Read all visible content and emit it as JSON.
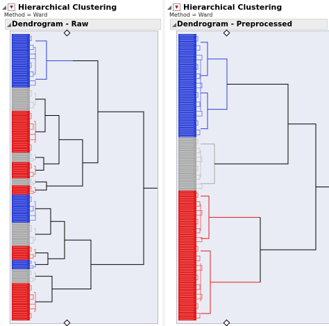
{
  "panels": [
    {
      "title": "Hierarchical Clustering",
      "method_label": "Method = Ward",
      "subtitle": "Dendrogram - Raw",
      "legend_icon": "collapse-triangle-icon",
      "menu_icon": "red-triangle-menu-icon"
    },
    {
      "title": "Hierarchical Clustering",
      "method_label": "Method = Ward",
      "subtitle": "Dendrogram - Preprocessed",
      "legend_icon": "collapse-triangle-icon",
      "menu_icon": "red-triangle-menu-icon"
    }
  ],
  "colors": {
    "blue": "#2a3fd8",
    "gray": "#a9a9a9",
    "red": "#e41818",
    "plot_bg": "#e9ecf4",
    "black": "#000000"
  },
  "left_leaf_groups": [
    {
      "color": "blue",
      "count": 23
    },
    {
      "color": "gray",
      "count": 10
    },
    {
      "color": "red",
      "count": 18
    },
    {
      "color": "gray",
      "count": 4
    },
    {
      "color": "red",
      "count": 7
    },
    {
      "color": "gray",
      "count": 3
    },
    {
      "color": "red",
      "count": 4
    },
    {
      "color": "blue",
      "count": 12
    },
    {
      "color": "gray",
      "count": 10
    },
    {
      "color": "red",
      "count": 6
    },
    {
      "color": "blue",
      "count": 4
    },
    {
      "color": "gray",
      "count": 6
    },
    {
      "color": "red",
      "count": 16
    }
  ],
  "right_leaf_groups": [
    {
      "color": "blue",
      "count": 54
    },
    {
      "color": "gray",
      "count": 28
    },
    {
      "color": "red",
      "count": 28
    },
    {
      "color": "red",
      "count": 40
    }
  ]
}
